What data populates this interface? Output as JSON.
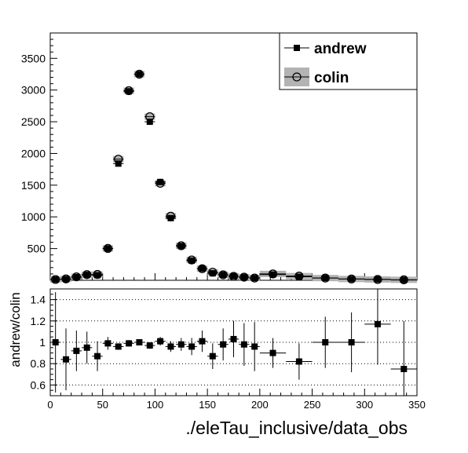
{
  "chart_data": [
    {
      "type": "scatter",
      "panel": "main",
      "xlim": [
        0,
        350
      ],
      "ylim": [
        0,
        3900
      ],
      "yticks": [
        500,
        1000,
        1500,
        2000,
        2500,
        3000,
        3500
      ],
      "grid": false,
      "legend_placement": "top-right",
      "series": [
        {
          "name": "andrew",
          "marker": "filled-square",
          "x": [
            5,
            15,
            25,
            35,
            45,
            55,
            65,
            75,
            85,
            95,
            105,
            115,
            125,
            135,
            145,
            155,
            165,
            175,
            185,
            195,
            212.5,
            237.5,
            262.5,
            287.5,
            312.5,
            337.5
          ],
          "xerr": [
            5,
            5,
            5,
            5,
            5,
            5,
            5,
            5,
            5,
            5,
            5,
            5,
            5,
            5,
            5,
            5,
            5,
            5,
            5,
            5,
            12.5,
            12.5,
            12.5,
            12.5,
            12.5,
            12.5
          ],
          "y": [
            12,
            18,
            50,
            85,
            80,
            500,
            1840,
            2980,
            3250,
            2500,
            1550,
            980,
            540,
            310,
            185,
            110,
            85,
            65,
            48,
            35,
            90,
            55,
            35,
            20,
            15,
            5
          ]
        },
        {
          "name": "colin",
          "marker": "open-circle",
          "x": [
            5,
            15,
            25,
            35,
            45,
            55,
            65,
            75,
            85,
            95,
            105,
            115,
            125,
            135,
            145,
            155,
            165,
            175,
            185,
            195,
            212.5,
            237.5,
            262.5,
            287.5,
            312.5,
            337.5
          ],
          "xerr": [
            5,
            5,
            5,
            5,
            5,
            5,
            5,
            5,
            5,
            5,
            5,
            5,
            5,
            5,
            5,
            5,
            5,
            5,
            5,
            5,
            12.5,
            12.5,
            12.5,
            12.5,
            12.5,
            12.5
          ],
          "y": [
            12,
            21,
            54,
            89,
            92,
            502,
            1910,
            2990,
            3250,
            2580,
            1530,
            1010,
            545,
            320,
            182,
            127,
            86,
            62,
            49,
            36,
            100,
            66,
            35,
            20,
            13,
            7
          ]
        }
      ]
    },
    {
      "type": "scatter",
      "panel": "ratio",
      "ylabel": "andrew/colin",
      "xlabel": "./eleTau_inclusive/data_obs",
      "xlim": [
        0,
        350
      ],
      "ylim": [
        0.5,
        1.5
      ],
      "xticks": [
        0,
        50,
        100,
        150,
        200,
        250,
        300,
        350
      ],
      "yticks": [
        0.6,
        0.8,
        1,
        1.2,
        1.4
      ],
      "grid": "horizontal-dotted",
      "series": [
        {
          "name": "andrew/colin",
          "marker": "filled-square",
          "x": [
            5,
            15,
            25,
            35,
            45,
            55,
            65,
            75,
            85,
            95,
            105,
            115,
            125,
            135,
            145,
            155,
            165,
            175,
            185,
            195,
            212.5,
            237.5,
            262.5,
            287.5,
            312.5,
            337.5
          ],
          "xerr": [
            5,
            5,
            5,
            5,
            5,
            5,
            5,
            5,
            5,
            5,
            5,
            5,
            5,
            5,
            5,
            5,
            5,
            5,
            5,
            5,
            12.5,
            12.5,
            12.5,
            12.5,
            12.5,
            12.5
          ],
          "y": [
            1.0,
            0.84,
            0.92,
            0.95,
            0.87,
            0.99,
            0.96,
            0.99,
            1.0,
            0.97,
            1.01,
            0.96,
            0.98,
            0.96,
            1.01,
            0.87,
            0.98,
            1.03,
            0.98,
            0.96,
            0.9,
            0.82,
            1.0,
            1.0,
            1.17,
            0.75
          ],
          "yerr": [
            0.47,
            0.29,
            0.19,
            0.15,
            0.14,
            0.06,
            0.03,
            0.03,
            0.02,
            0.03,
            0.04,
            0.05,
            0.06,
            0.08,
            0.1,
            0.12,
            0.15,
            0.17,
            0.2,
            0.23,
            0.14,
            0.17,
            0.24,
            0.28,
            0.38,
            0.45
          ]
        }
      ]
    }
  ]
}
